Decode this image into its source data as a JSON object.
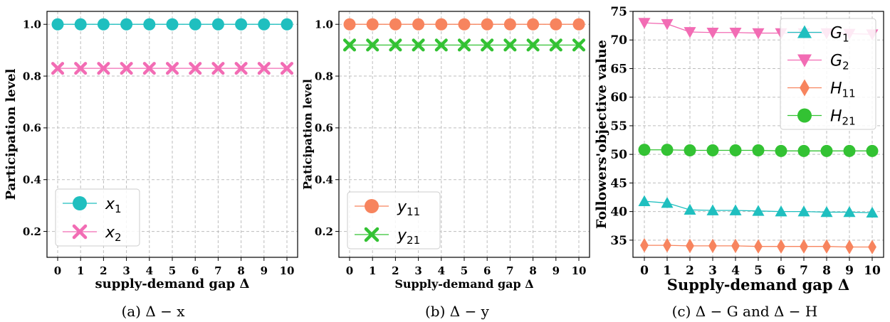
{
  "chart_data": [
    {
      "type": "line",
      "caption": "(a) Δ − x",
      "xlabel": "supply-demand gap Δ",
      "ylabel": "Participation level",
      "x": [
        0,
        1,
        2,
        3,
        4,
        5,
        6,
        7,
        8,
        9,
        10
      ],
      "xticks": [
        "0",
        "1",
        "2",
        "3",
        "4",
        "5",
        "6",
        "7",
        "8",
        "9",
        "10"
      ],
      "yticks": [
        0.2,
        0.4,
        0.6,
        0.8,
        1.0
      ],
      "ylim": [
        0.1,
        1.05
      ],
      "grid": true,
      "legend": "bottom-left",
      "series": [
        {
          "name": "x1",
          "values": [
            1.0,
            1.0,
            1.0,
            1.0,
            1.0,
            1.0,
            1.0,
            1.0,
            1.0,
            1.0,
            1.0
          ],
          "color": "#1fbfbf",
          "marker": "circle"
        },
        {
          "name": "x2",
          "values": [
            0.83,
            0.83,
            0.83,
            0.83,
            0.83,
            0.83,
            0.83,
            0.83,
            0.83,
            0.83,
            0.83
          ],
          "color": "#f26cb4",
          "marker": "x"
        }
      ]
    },
    {
      "type": "line",
      "caption": "(b) Δ − y",
      "xlabel": "Supply-demand gap Δ",
      "ylabel": "Paticipation level",
      "x": [
        0,
        1,
        2,
        3,
        4,
        5,
        6,
        7,
        8,
        9,
        10
      ],
      "xticks": [
        "0",
        "1",
        "2",
        "3",
        "4",
        "5",
        "6",
        "7",
        "8",
        "9",
        "10"
      ],
      "yticks": [
        0.2,
        0.4,
        0.6,
        0.8,
        1.0
      ],
      "ylim": [
        0.1,
        1.05
      ],
      "grid": true,
      "legend": "bottom-left",
      "series": [
        {
          "name": "y11",
          "values": [
            1.0,
            1.0,
            1.0,
            1.0,
            1.0,
            1.0,
            1.0,
            1.0,
            1.0,
            1.0,
            1.0
          ],
          "color": "#f7845e",
          "marker": "circle"
        },
        {
          "name": "y21",
          "values": [
            0.92,
            0.92,
            0.92,
            0.92,
            0.92,
            0.92,
            0.92,
            0.92,
            0.92,
            0.92,
            0.92
          ],
          "color": "#33c233",
          "marker": "x"
        }
      ]
    },
    {
      "type": "line",
      "caption": "(c) Δ − G and Δ − H",
      "xlabel": "Supply-demand gap Δ",
      "ylabel": "Followers'objective value",
      "x": [
        0,
        1,
        2,
        3,
        4,
        5,
        6,
        7,
        8,
        9,
        10
      ],
      "xticks": [
        "0",
        "1",
        "2",
        "3",
        "4",
        "5",
        "6",
        "7",
        "8",
        "9",
        "10"
      ],
      "yticks": [
        35,
        40,
        45,
        50,
        55,
        60,
        65,
        70,
        75
      ],
      "ylim": [
        32,
        75
      ],
      "grid": true,
      "legend": "top-right",
      "series": [
        {
          "name": "G1",
          "values": [
            41.8,
            41.5,
            40.3,
            40.2,
            40.2,
            40.1,
            40.0,
            40.0,
            39.9,
            39.9,
            39.8
          ],
          "color": "#1fbfbf",
          "marker": "triangle-up"
        },
        {
          "name": "G2",
          "values": [
            73.0,
            72.8,
            71.4,
            71.3,
            71.3,
            71.2,
            71.2,
            71.2,
            71.2,
            71.1,
            71.0
          ],
          "color": "#f26cb4",
          "marker": "triangle-down"
        },
        {
          "name": "H11",
          "values": [
            34.1,
            34.1,
            34.0,
            34.0,
            34.0,
            33.9,
            33.9,
            33.9,
            33.9,
            33.8,
            33.8
          ],
          "color": "#f7845e",
          "marker": "diamond"
        },
        {
          "name": "H21",
          "values": [
            50.8,
            50.8,
            50.7,
            50.7,
            50.7,
            50.7,
            50.6,
            50.6,
            50.6,
            50.6,
            50.6
          ],
          "color": "#33c233",
          "marker": "circle"
        }
      ]
    }
  ]
}
